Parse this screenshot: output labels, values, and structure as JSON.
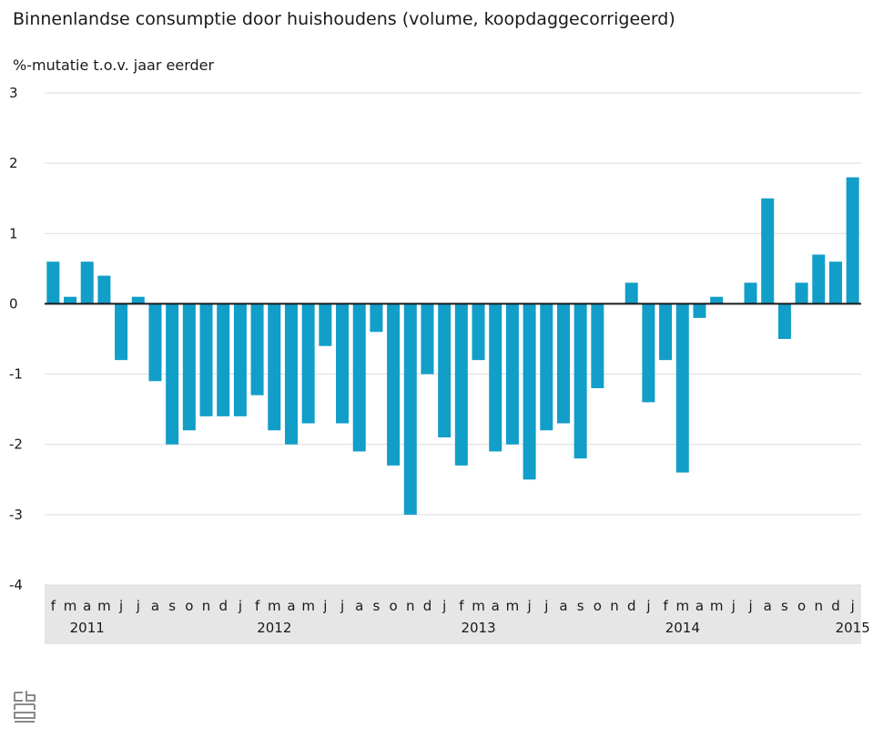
{
  "chart_data": {
    "type": "bar",
    "title": "Binnenlandse consumptie door huishoudens (volume, koopdaggecorrigeerd)",
    "ylabel": "%-mutatie t.o.v. jaar eerder",
    "ylim": [
      -4,
      3
    ],
    "yticks": [
      "3",
      "2",
      "1",
      "0",
      "-1",
      "-2",
      "-3",
      "-4"
    ],
    "grid": true,
    "bar_color": "#119ec9",
    "categories": [
      "f",
      "m",
      "a",
      "m",
      "j",
      "j",
      "a",
      "s",
      "o",
      "n",
      "d",
      "j",
      "f",
      "m",
      "a",
      "m",
      "j",
      "j",
      "a",
      "s",
      "o",
      "n",
      "d",
      "j",
      "f",
      "m",
      "a",
      "m",
      "j",
      "j",
      "a",
      "s",
      "o",
      "n",
      "d",
      "j",
      "f",
      "m",
      "a",
      "m",
      "j",
      "j",
      "a",
      "s",
      "o",
      "n",
      "d",
      "j"
    ],
    "values": [
      0.6,
      0.1,
      0.6,
      0.4,
      -0.8,
      0.1,
      -1.1,
      -2.0,
      -1.8,
      -1.6,
      -1.6,
      -1.6,
      -1.3,
      -1.8,
      -2.0,
      -1.7,
      -0.6,
      -1.7,
      -2.1,
      -0.4,
      -2.3,
      -3.0,
      -1.0,
      -1.9,
      -2.3,
      -0.8,
      -2.1,
      -2.0,
      -2.5,
      -1.8,
      -1.7,
      -2.2,
      -1.2,
      0.0,
      0.3,
      -1.4,
      -0.8,
      -2.4,
      -0.2,
      0.1,
      0.0,
      0.3,
      1.5,
      -0.5,
      0.3,
      0.7,
      0.6,
      1.8
    ],
    "years": [
      {
        "label": "2011",
        "start_index": 0
      },
      {
        "label": "2012",
        "start_index": 11
      },
      {
        "label": "2013",
        "start_index": 23
      },
      {
        "label": "2014",
        "start_index": 35
      },
      {
        "label": "2015",
        "start_index": 47
      }
    ]
  }
}
